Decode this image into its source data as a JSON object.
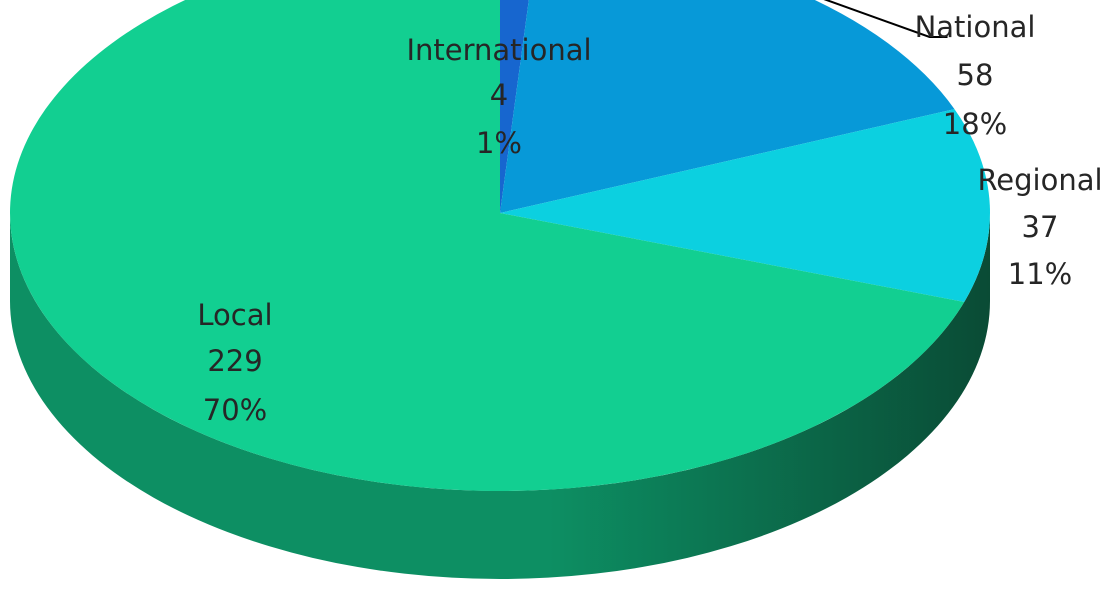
{
  "chart_data": {
    "type": "pie",
    "style": "3d",
    "slices": [
      {
        "label": "International",
        "value": 4,
        "percent": "1%",
        "color": "#1766cf"
      },
      {
        "label": "National",
        "value": 58,
        "percent": "18%",
        "color": "#0799d8"
      },
      {
        "label": "Regional",
        "value": 37,
        "percent": "11%",
        "color": "#0cd0e0"
      },
      {
        "label": "Local",
        "value": 229,
        "percent": "70%",
        "color": "#12cf91"
      }
    ],
    "side_color": "#0d8f63",
    "side_color_dark": "#0a4b35",
    "leader_line_color": "#000000"
  }
}
